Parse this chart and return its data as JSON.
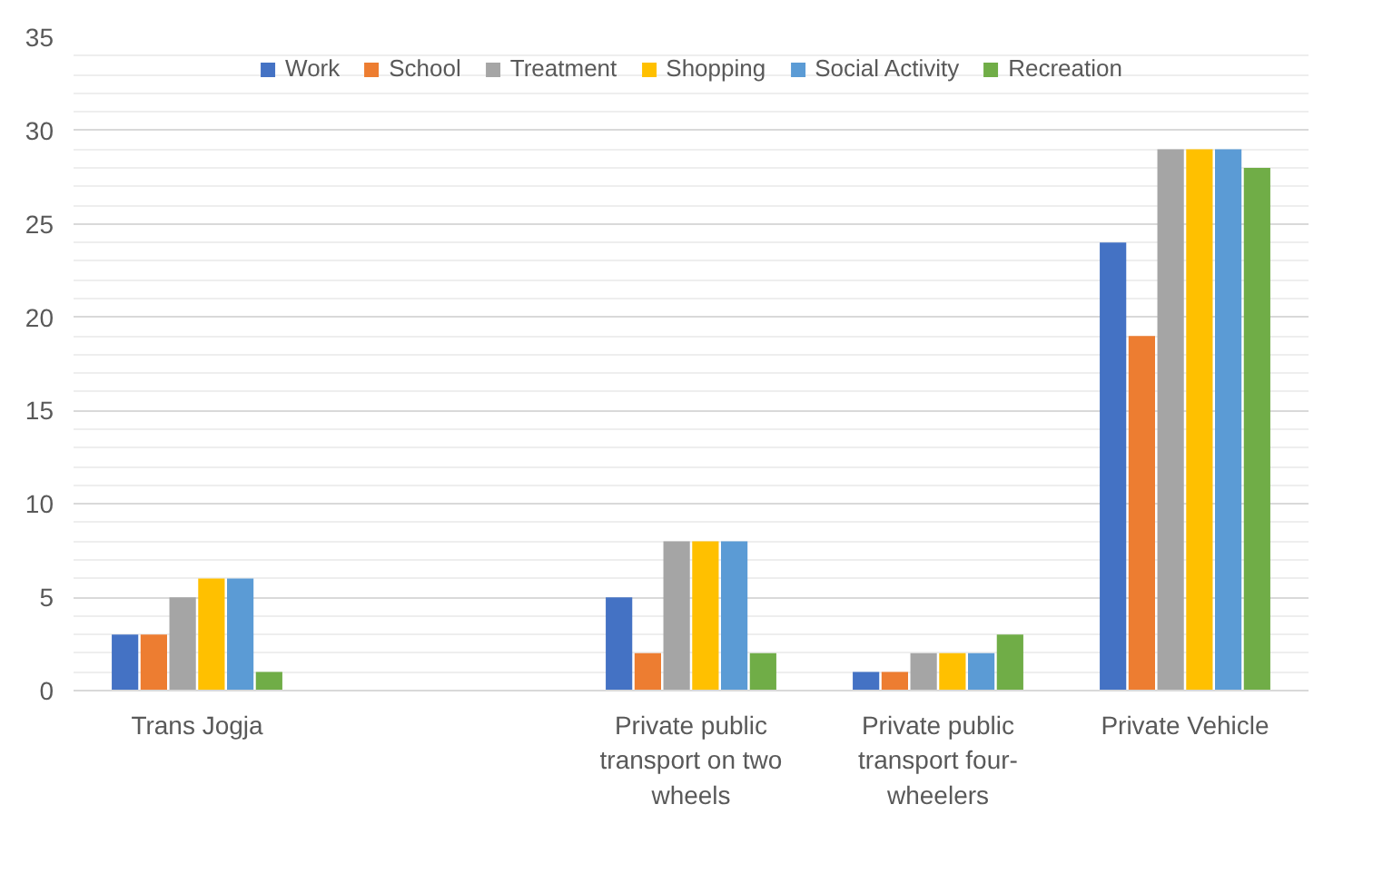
{
  "chart_data": {
    "type": "bar",
    "categories": [
      "Trans Jogja",
      null,
      "Private public transport on two wheels",
      "Private public transport four-wheelers",
      "Private Vehicle"
    ],
    "series": [
      {
        "name": "Work",
        "color": "#4472c4",
        "values": [
          3,
          0,
          5,
          1,
          24
        ]
      },
      {
        "name": "School",
        "color": "#ed7d31",
        "values": [
          3,
          0,
          2,
          1,
          19
        ]
      },
      {
        "name": "Treatment",
        "color": "#a5a5a5",
        "values": [
          5,
          0,
          8,
          2,
          29
        ]
      },
      {
        "name": "Shopping",
        "color": "#ffc000",
        "values": [
          6,
          0,
          8,
          2,
          29
        ]
      },
      {
        "name": "Social Activity",
        "color": "#5b9bd5",
        "values": [
          6,
          0,
          8,
          2,
          29
        ]
      },
      {
        "name": "Recreation",
        "color": "#70ad47",
        "values": [
          1,
          0,
          2,
          3,
          28
        ]
      }
    ],
    "ylim": [
      0,
      35
    ],
    "yticks": [
      0,
      5,
      10,
      15,
      20,
      25,
      30,
      35
    ],
    "grid": "y",
    "legend": "top"
  }
}
